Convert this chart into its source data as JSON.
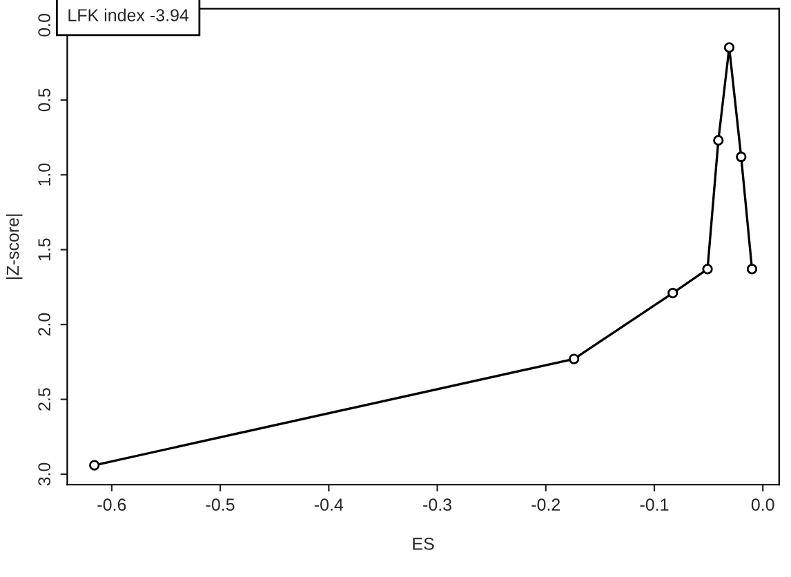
{
  "chart_data": {
    "type": "line",
    "xlabel": "ES",
    "ylabel": "|Z-score|",
    "annotations": [
      "LFK index -3.94"
    ],
    "x": [
      -0.616,
      -0.174,
      -0.083,
      -0.051,
      -0.041,
      -0.031,
      -0.02,
      -0.01
    ],
    "series": [
      {
        "color": "#000000",
        "values": [
          2.94,
          2.23,
          1.79,
          1.63,
          0.77,
          0.15,
          0.88,
          1.63
        ]
      }
    ],
    "marker": "circle",
    "line_style": "solid",
    "grid": false,
    "legend": false,
    "xlim": [
      -0.641,
      0.015
    ],
    "xticks": [
      {
        "value": -0.6,
        "label": "-0.6"
      },
      {
        "value": -0.5,
        "label": "-0.5"
      },
      {
        "value": -0.4,
        "label": "-0.4"
      },
      {
        "value": -0.3,
        "label": "-0.3"
      },
      {
        "value": -0.2,
        "label": "-0.2"
      },
      {
        "value": -0.1,
        "label": "-0.1"
      },
      {
        "value": 0.0,
        "label": "0.0"
      }
    ],
    "ylim": [
      3.07,
      -0.11
    ],
    "yticks": [
      {
        "value": 0.0,
        "label": "0.0"
      },
      {
        "value": 0.5,
        "label": "0.5"
      },
      {
        "value": 1.0,
        "label": "1.0"
      },
      {
        "value": 1.5,
        "label": "1.5"
      },
      {
        "value": 2.0,
        "label": "2.0"
      },
      {
        "value": 2.5,
        "label": "2.5"
      },
      {
        "value": 3.0,
        "label": "3.0"
      }
    ]
  }
}
